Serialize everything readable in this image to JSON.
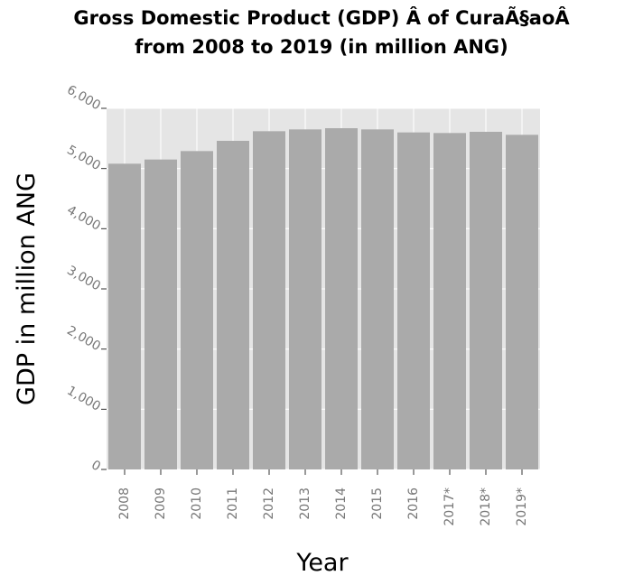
{
  "chart_data": {
    "type": "bar",
    "title_lines": [
      "Gross Domestic Product (GDP) Â of CuraÃ§aoÂ",
      "from 2008 to 2019 (in million ANG)"
    ],
    "xlabel": "Year",
    "ylabel": "GDP in million ANG",
    "categories": [
      "2008",
      "2009",
      "2010",
      "2011",
      "2012",
      "2013",
      "2014",
      "2015",
      "2016",
      "2017*",
      "2018*",
      "2019*"
    ],
    "values": [
      5080,
      5150,
      5290,
      5460,
      5620,
      5650,
      5670,
      5650,
      5600,
      5590,
      5610,
      5560
    ],
    "y_ticks": [
      0,
      1000,
      2000,
      3000,
      4000,
      5000,
      6000
    ],
    "y_tick_labels": [
      "0",
      "1,000",
      "2,000",
      "3,000",
      "4,000",
      "5,000",
      "6,000"
    ],
    "ylim": [
      0,
      6000
    ],
    "grid": true,
    "colors": {
      "bar": "#aaaaaa",
      "panel": "#e5e5e5",
      "grid": "#ffffff"
    }
  }
}
